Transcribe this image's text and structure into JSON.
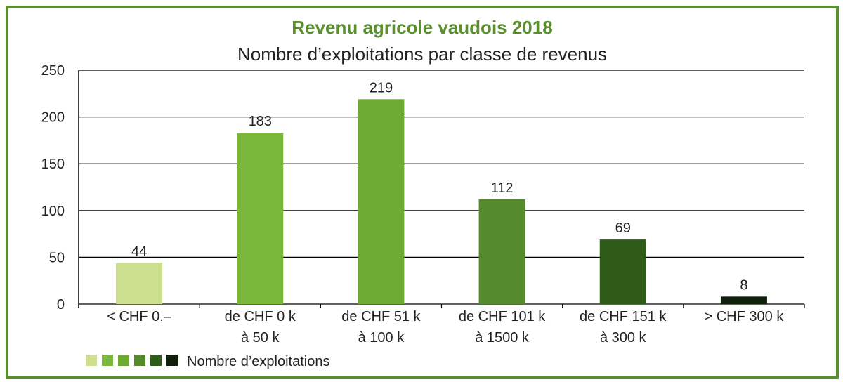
{
  "chart_data": {
    "type": "bar",
    "title": "Revenu agricole vaudois 2018",
    "subtitle": "Nombre d’exploitations par classe de revenus",
    "categories": [
      [
        "< CHF 0.–"
      ],
      [
        "de CHF 0 k",
        "à 50 k"
      ],
      [
        "de CHF 51 k",
        "à 100 k"
      ],
      [
        "de CHF 101 k",
        "à 1500 k"
      ],
      [
        "de CHF 151 k",
        "à 300 k"
      ],
      [
        "> CHF 300 k"
      ]
    ],
    "series": [
      {
        "name": "Nombre d’exploitations",
        "values": [
          44,
          183,
          219,
          112,
          69,
          8
        ]
      }
    ],
    "bar_colors": [
      "#cce090",
      "#7ab83c",
      "#6daa34",
      "#548a2b",
      "#2f5b18",
      "#0e1f0a"
    ],
    "ylim": [
      0,
      250
    ],
    "yticks": [
      0,
      50,
      100,
      150,
      200,
      250
    ],
    "grid": true,
    "legend_position": "bottom-left",
    "title_color": "#5a8f2e",
    "frame_color": "#5a8f2e"
  }
}
